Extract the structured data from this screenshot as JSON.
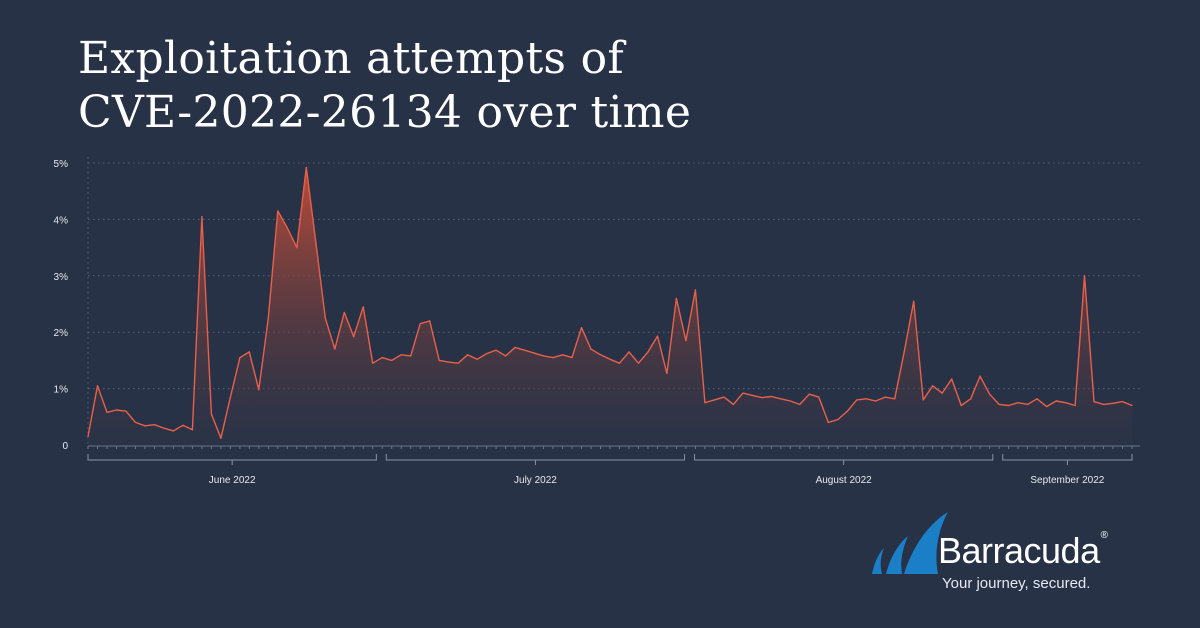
{
  "title": {
    "line1": "Exploitation attempts of",
    "line2": "CVE-2022-26134 over time"
  },
  "brand": {
    "name": "Barracuda",
    "registered": "®",
    "tagline": "Your journey, secured."
  },
  "colors": {
    "background": "#283246",
    "line": "#e8604a",
    "fill_top": "#c44c36",
    "fill_bottom": "#2c3448",
    "logo_blue": "#1b7fc8"
  },
  "chart_data": {
    "type": "area",
    "title": "",
    "xlabel": "",
    "ylabel": "",
    "ylim": [
      0,
      5
    ],
    "yticks": [
      {
        "value": 0,
        "label": "0"
      },
      {
        "value": 1,
        "label": "1%"
      },
      {
        "value": 2,
        "label": "2%"
      },
      {
        "value": 3,
        "label": "3%"
      },
      {
        "value": 4,
        "label": "4%"
      },
      {
        "value": 5,
        "label": "5%"
      }
    ],
    "grid": true,
    "x_start": "2022-06-01",
    "x_end": "2022-09-14",
    "months": [
      {
        "label": "June 2022",
        "start": "2022-06-01",
        "end": "2022-06-30"
      },
      {
        "label": "July 2022",
        "start": "2022-07-01",
        "end": "2022-07-31"
      },
      {
        "label": "August 2022",
        "start": "2022-08-01",
        "end": "2022-08-31"
      },
      {
        "label": "September 2022",
        "start": "2022-09-01",
        "end": "2022-09-14"
      }
    ],
    "series": [
      {
        "name": "",
        "values": [
          0.15,
          1.05,
          0.58,
          0.62,
          0.6,
          0.4,
          0.34,
          0.36,
          0.3,
          0.25,
          0.35,
          0.27,
          4.05,
          0.55,
          0.12,
          0.85,
          1.55,
          1.65,
          0.98,
          2.25,
          4.15,
          3.85,
          3.5,
          4.92,
          3.6,
          2.25,
          1.7,
          2.35,
          1.92,
          2.45,
          1.45,
          1.55,
          1.5,
          1.6,
          1.58,
          2.15,
          2.2,
          1.5,
          1.47,
          1.45,
          1.6,
          1.52,
          1.62,
          1.68,
          1.58,
          1.73,
          1.68,
          1.63,
          1.58,
          1.55,
          1.6,
          1.55,
          2.08,
          1.7,
          1.6,
          1.52,
          1.45,
          1.65,
          1.45,
          1.65,
          1.93,
          1.27,
          2.6,
          1.85,
          2.75,
          0.75,
          0.8,
          0.85,
          0.72,
          0.92,
          0.88,
          0.84,
          0.86,
          0.82,
          0.78,
          0.72,
          0.9,
          0.85,
          0.4,
          0.45,
          0.6,
          0.8,
          0.82,
          0.78,
          0.85,
          0.82,
          1.65,
          2.55,
          0.8,
          1.05,
          0.92,
          1.17,
          0.7,
          0.82,
          1.22,
          0.9,
          0.72,
          0.7,
          0.75,
          0.72,
          0.82,
          0.68,
          0.78,
          0.75,
          0.7,
          3.0,
          0.77,
          0.72,
          0.74,
          0.77,
          0.7
        ]
      }
    ]
  }
}
